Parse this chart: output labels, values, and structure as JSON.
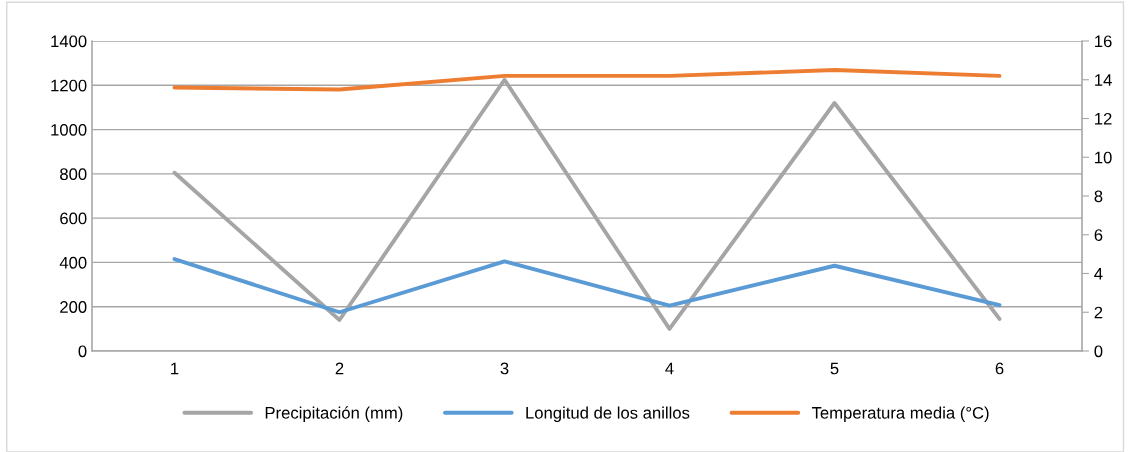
{
  "chart_data": {
    "type": "line",
    "categories": [
      "1",
      "2",
      "3",
      "4",
      "5",
      "6"
    ],
    "series": [
      {
        "name": "Precipitación (mm)",
        "color": "#a5a5a5",
        "values": [
          805,
          140,
          1225,
          100,
          1120,
          145
        ]
      },
      {
        "name": "Longitud de los anillos",
        "color": "#5b9bd5",
        "values": [
          415,
          175,
          405,
          205,
          385,
          207
        ]
      },
      {
        "name": "Temperatura media (°C)",
        "color": "#ed7d31",
        "values": [
          13.6,
          13.5,
          14.2,
          14.2,
          14.5,
          14.2
        ],
        "axis": "y2"
      }
    ],
    "ylim": [
      0,
      1400
    ],
    "yticks": [
      0,
      200,
      400,
      600,
      800,
      1000,
      1200,
      1400
    ],
    "y2lim": [
      0,
      16
    ],
    "y2ticks": [
      0,
      2,
      4,
      6,
      8,
      10,
      12,
      14,
      16
    ],
    "grid": "y",
    "legend": "bottom",
    "marker": "none",
    "line_style": "solid"
  }
}
